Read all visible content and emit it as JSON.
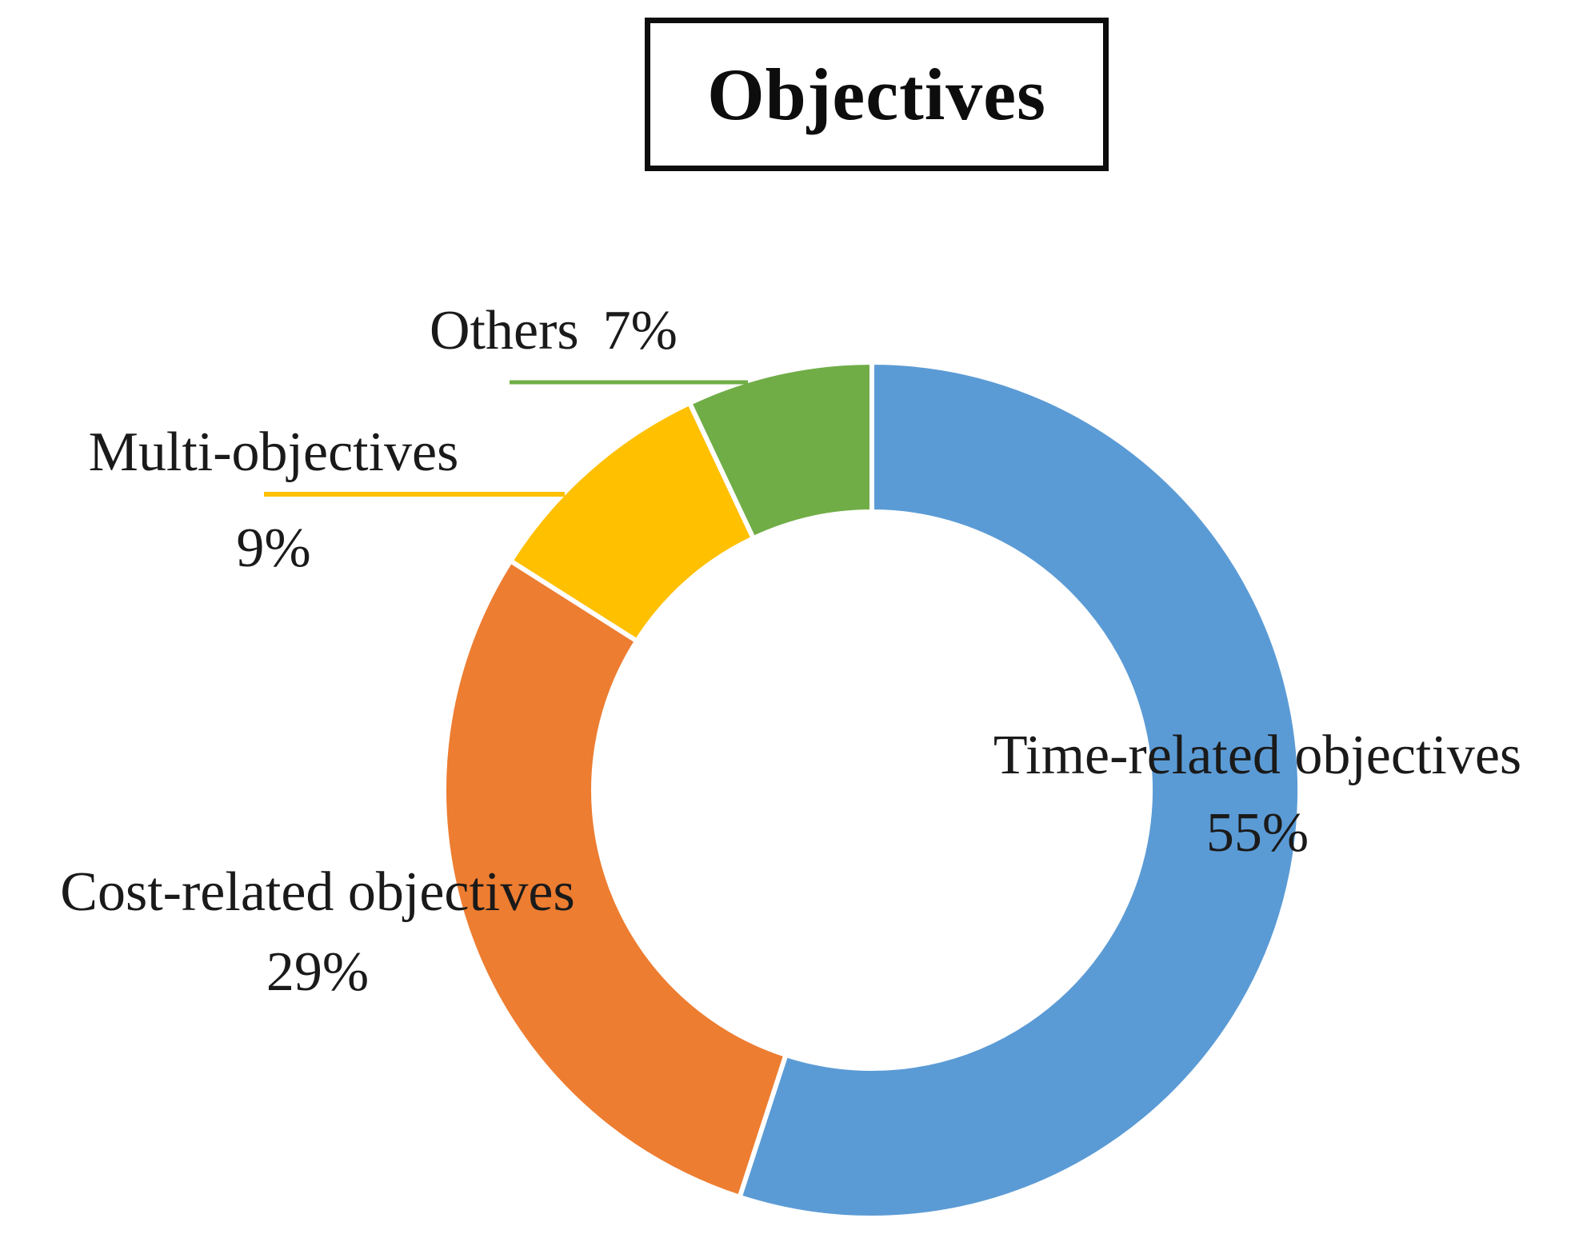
{
  "title_box": {
    "label": "Objectives"
  },
  "chart_data": {
    "type": "pie",
    "subtype": "donut",
    "title": "Objectives",
    "categories": [
      "Time-related objectives",
      "Cost-related objectives",
      "Multi-objectives",
      "Others"
    ],
    "values": [
      55,
      29,
      9,
      7
    ],
    "unit": "%",
    "colors": [
      "#5B9BD5",
      "#ED7D31",
      "#FFC000",
      "#70AD47"
    ],
    "start_angle_deg": 0,
    "direction": "clockwise",
    "hole_ratio": 0.65,
    "slice_gap_color": "#ffffff",
    "legend": "none",
    "callouts": [
      {
        "text": "Time-related objectives",
        "pct": "55%"
      },
      {
        "text": "Cost-related objectives",
        "pct": "29%"
      },
      {
        "text": "Multi-objectives",
        "pct": "9%"
      },
      {
        "text": "Others",
        "pct": "7%"
      }
    ]
  }
}
